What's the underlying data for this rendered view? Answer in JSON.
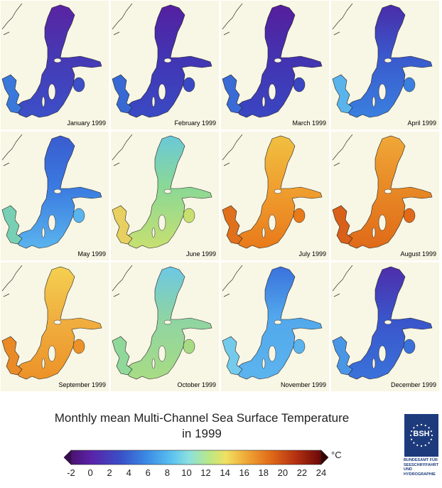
{
  "title": {
    "line1": "Monthly mean Multi-Channel Sea Surface Temperature",
    "line2": "in 1999"
  },
  "colorbar": {
    "unit": "°C",
    "ticks": [
      "-2",
      "0",
      "2",
      "4",
      "6",
      "8",
      "10",
      "12",
      "14",
      "16",
      "18",
      "20",
      "22",
      "24"
    ],
    "range": [
      -2,
      24
    ]
  },
  "logo": {
    "abbr": "BSH",
    "text": [
      "BUNDESAMT FÜR",
      "SEESCHIFFFAHRT",
      "UND",
      "HYDROGRAPHIE"
    ]
  },
  "panels": [
    {
      "label": "January 1999",
      "north_color": "#5a24a2",
      "center_color": "#4638b4",
      "south_color": "#3c50c8",
      "west_color": "#3a78dc"
    },
    {
      "label": "February 1999",
      "north_color": "#5420a0",
      "center_color": "#4234b2",
      "south_color": "#3a4ac4",
      "west_color": "#3868d4"
    },
    {
      "label": "March 1999",
      "north_color": "#561e9c",
      "center_color": "#4432b0",
      "south_color": "#3a46c2",
      "west_color": "#3a6ad6"
    },
    {
      "label": "April 1999",
      "north_color": "#4a2ca8",
      "center_color": "#3a58cc",
      "south_color": "#3a80e0",
      "west_color": "#5ab4ec"
    },
    {
      "label": "May 1999",
      "north_color": "#3a5cd0",
      "center_color": "#3a7ae0",
      "south_color": "#5ab4ee",
      "west_color": "#78d0b4"
    },
    {
      "label": "June 1999",
      "north_color": "#6ac8d8",
      "center_color": "#8ad896",
      "south_color": "#c8e070",
      "west_color": "#e8d060"
    },
    {
      "label": "July 1999",
      "north_color": "#f0c040",
      "center_color": "#f0a030",
      "south_color": "#e87a1a",
      "west_color": "#e0701c"
    },
    {
      "label": "August 1999",
      "north_color": "#f0a838",
      "center_color": "#e88a26",
      "south_color": "#e06a18",
      "west_color": "#d86018"
    },
    {
      "label": "September 1999",
      "north_color": "#f4d050",
      "center_color": "#f0b040",
      "south_color": "#ec9228",
      "west_color": "#ea8a26"
    },
    {
      "label": "October 1999",
      "north_color": "#6cc8e4",
      "center_color": "#8ed4a4",
      "south_color": "#a8dc84",
      "west_color": "#90d89a"
    },
    {
      "label": "November 1999",
      "north_color": "#3a72dc",
      "center_color": "#52a8ec",
      "south_color": "#5cb4ee",
      "west_color": "#74caea"
    },
    {
      "label": "December 1999",
      "north_color": "#4e2eaa",
      "center_color": "#3a54ca",
      "south_color": "#3a72da",
      "west_color": "#4a96e6"
    }
  ]
}
